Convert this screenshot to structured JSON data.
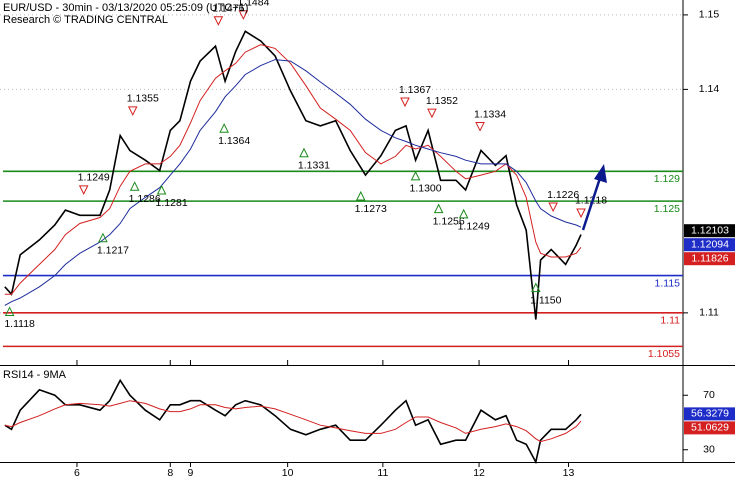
{
  "chart_data": [
    {
      "type": "line",
      "title": "EUR/USD - 30min - 03/13/2020 05:25:09 (UTC+1)",
      "subtitle": "Research © TRADING CENTRAL",
      "xlim": [
        0.2,
        7.3
      ],
      "ylim": [
        1.103,
        1.152
      ],
      "yticks": [
        1.11,
        1.14,
        1.15
      ],
      "grid": true,
      "x": [
        0.25,
        0.32,
        0.41,
        0.61,
        0.77,
        0.88,
        1.03,
        1.24,
        1.34,
        1.45,
        1.55,
        1.71,
        1.86,
        1.97,
        2.07,
        2.18,
        2.28,
        2.44,
        2.54,
        2.65,
        2.75,
        2.91,
        3.06,
        3.22,
        3.38,
        3.53,
        3.69,
        3.84,
        4.0,
        4.16,
        4.31,
        4.42,
        4.52,
        4.65,
        4.78,
        4.94,
        5.04,
        5.2,
        5.35,
        5.46,
        5.57,
        5.67,
        5.77,
        5.82,
        5.93,
        6.08,
        6.19,
        6.24
      ],
      "series": [
        {
          "color": "#000000",
          "values": [
            1.1135,
            1.1125,
            1.1178,
            1.1198,
            1.1218,
            1.1238,
            1.1231,
            1.1231,
            1.1265,
            1.1338,
            1.1318,
            1.1305,
            1.1291,
            1.1345,
            1.1358,
            1.1411,
            1.1438,
            1.1458,
            1.1411,
            1.1451,
            1.1478,
            1.1465,
            1.1445,
            1.1398,
            1.1358,
            1.1351,
            1.1358,
            1.1318,
            1.1285,
            1.1311,
            1.1345,
            1.1351,
            1.1305,
            1.1345,
            1.1278,
            1.1278,
            1.1265,
            1.1318,
            1.1298,
            1.1311,
            1.1245,
            1.1211,
            1.1091,
            1.1171,
            1.1185,
            1.1165,
            1.1191,
            1.1205
          ]
        },
        {
          "color": "#d42020",
          "values": [
            1.1125,
            1.1125,
            1.114,
            1.1165,
            1.1185,
            1.1205,
            1.122,
            1.1228,
            1.124,
            1.127,
            1.129,
            1.13,
            1.13,
            1.131,
            1.1325,
            1.1355,
            1.1385,
            1.1415,
            1.1425,
            1.1435,
            1.145,
            1.146,
            1.1455,
            1.1435,
            1.1405,
            1.1375,
            1.136,
            1.1345,
            1.1315,
            1.13,
            1.131,
            1.1325,
            1.132,
            1.1325,
            1.131,
            1.129,
            1.128,
            1.1285,
            1.129,
            1.13,
            1.1285,
            1.1255,
            1.1195,
            1.118,
            1.1175,
            1.1175,
            1.118,
            1.1188
          ]
        },
        {
          "color": "#1e2c9c",
          "values": [
            1.111,
            1.1115,
            1.112,
            1.1135,
            1.115,
            1.1165,
            1.118,
            1.1195,
            1.1205,
            1.122,
            1.124,
            1.1255,
            1.1268,
            1.1285,
            1.13,
            1.132,
            1.1345,
            1.137,
            1.139,
            1.1405,
            1.142,
            1.1432,
            1.144,
            1.1438,
            1.1425,
            1.141,
            1.1395,
            1.138,
            1.136,
            1.1345,
            1.1335,
            1.133,
            1.1325,
            1.132,
            1.1315,
            1.131,
            1.1305,
            1.13,
            1.13,
            1.13,
            1.129,
            1.1275,
            1.125,
            1.124,
            1.123,
            1.1222,
            1.1218,
            1.1215
          ]
        }
      ],
      "levels": [
        {
          "value": 1.129,
          "color": "#1a8a1a"
        },
        {
          "value": 1.125,
          "color": "#1a8a1a"
        },
        {
          "value": 1.115,
          "color": "#1e2cc8"
        },
        {
          "value": 1.11,
          "color": "#d42020"
        },
        {
          "value": 1.1055,
          "color": "#d42020"
        }
      ],
      "annotations": [
        {
          "kind": "low",
          "x": 0.3,
          "value": 1.1118
        },
        {
          "kind": "high",
          "x": 1.07,
          "value": 1.1249
        },
        {
          "kind": "low",
          "x": 1.27,
          "value": 1.1217
        },
        {
          "kind": "high",
          "x": 1.58,
          "value": 1.1355
        },
        {
          "kind": "low",
          "x": 1.6,
          "value": 1.1286
        },
        {
          "kind": "low",
          "x": 1.88,
          "value": 1.1281
        },
        {
          "kind": "high",
          "x": 2.47,
          "value": 1.1476
        },
        {
          "kind": "low",
          "x": 2.53,
          "value": 1.1364
        },
        {
          "kind": "high",
          "x": 2.73,
          "value": 1.1484
        },
        {
          "kind": "low",
          "x": 3.36,
          "value": 1.1331
        },
        {
          "kind": "low",
          "x": 3.95,
          "value": 1.1273
        },
        {
          "kind": "high",
          "x": 4.41,
          "value": 1.1367
        },
        {
          "kind": "low",
          "x": 4.52,
          "value": 1.13,
          "label": "1.1300"
        },
        {
          "kind": "high",
          "x": 4.69,
          "value": 1.1352
        },
        {
          "kind": "low",
          "x": 4.76,
          "value": 1.1256
        },
        {
          "kind": "low",
          "x": 5.02,
          "value": 1.1249
        },
        {
          "kind": "high",
          "x": 5.19,
          "value": 1.1334
        },
        {
          "kind": "high",
          "x": 5.95,
          "value": 1.1226
        },
        {
          "kind": "high",
          "x": 6.24,
          "value": 1.1218
        },
        {
          "kind": "low",
          "x": 5.77,
          "value": 1.115,
          "label": "1.1150"
        }
      ],
      "tags": [
        {
          "value": 1.12103,
          "color": "#000000"
        },
        {
          "value": 1.12094,
          "color": "#1e2cc8"
        },
        {
          "value": 1.11826,
          "color": "#d42020"
        }
      ]
    },
    {
      "type": "line",
      "title": "RSI14 - 9MA",
      "xlim": [
        0.2,
        7.3
      ],
      "ylim": [
        21,
        90
      ],
      "yticks": [
        30,
        70
      ],
      "grid": false,
      "xticks": [
        {
          "value": 1.0,
          "label": "6"
        },
        {
          "value": 1.97,
          "label": "8"
        },
        {
          "value": 2.18,
          "label": "9"
        },
        {
          "value": 3.19,
          "label": "10"
        },
        {
          "value": 4.18,
          "label": "11"
        },
        {
          "value": 5.18,
          "label": "12"
        },
        {
          "value": 6.11,
          "label": "13"
        }
      ],
      "x": [
        0.25,
        0.32,
        0.41,
        0.61,
        0.77,
        0.88,
        1.03,
        1.24,
        1.34,
        1.45,
        1.55,
        1.71,
        1.86,
        1.97,
        2.07,
        2.18,
        2.28,
        2.44,
        2.54,
        2.65,
        2.75,
        2.91,
        3.06,
        3.22,
        3.38,
        3.53,
        3.69,
        3.84,
        4.0,
        4.16,
        4.31,
        4.42,
        4.52,
        4.65,
        4.78,
        4.94,
        5.04,
        5.2,
        5.35,
        5.46,
        5.57,
        5.67,
        5.77,
        5.82,
        5.93,
        6.08,
        6.19,
        6.24
      ],
      "series": [
        {
          "color": "#000000",
          "values": [
            48,
            45,
            59,
            74,
            70,
            63,
            63,
            59,
            66,
            81,
            70,
            59,
            52,
            63,
            63,
            66,
            66,
            59,
            55,
            63,
            66,
            63,
            55,
            45,
            41,
            45,
            48,
            37,
            37,
            48,
            59,
            66,
            48,
            52,
            34,
            37,
            37,
            59,
            52,
            55,
            37,
            34,
            21,
            37,
            45,
            45,
            52,
            56
          ]
        },
        {
          "color": "#d42020",
          "values": [
            48,
            47,
            50,
            55,
            60,
            63,
            64,
            63,
            62,
            64,
            66,
            64,
            60,
            58,
            58,
            60,
            63,
            63,
            61,
            60,
            61,
            62,
            60,
            56,
            52,
            48,
            46,
            44,
            42,
            42,
            45,
            50,
            54,
            54,
            50,
            46,
            42,
            45,
            47,
            49,
            47,
            44,
            38,
            36,
            38,
            42,
            47,
            51
          ]
        }
      ],
      "tags": [
        {
          "value": 56.3279,
          "color": "#1e2cc8"
        },
        {
          "value": 51.0629,
          "color": "#d42020"
        }
      ]
    }
  ]
}
